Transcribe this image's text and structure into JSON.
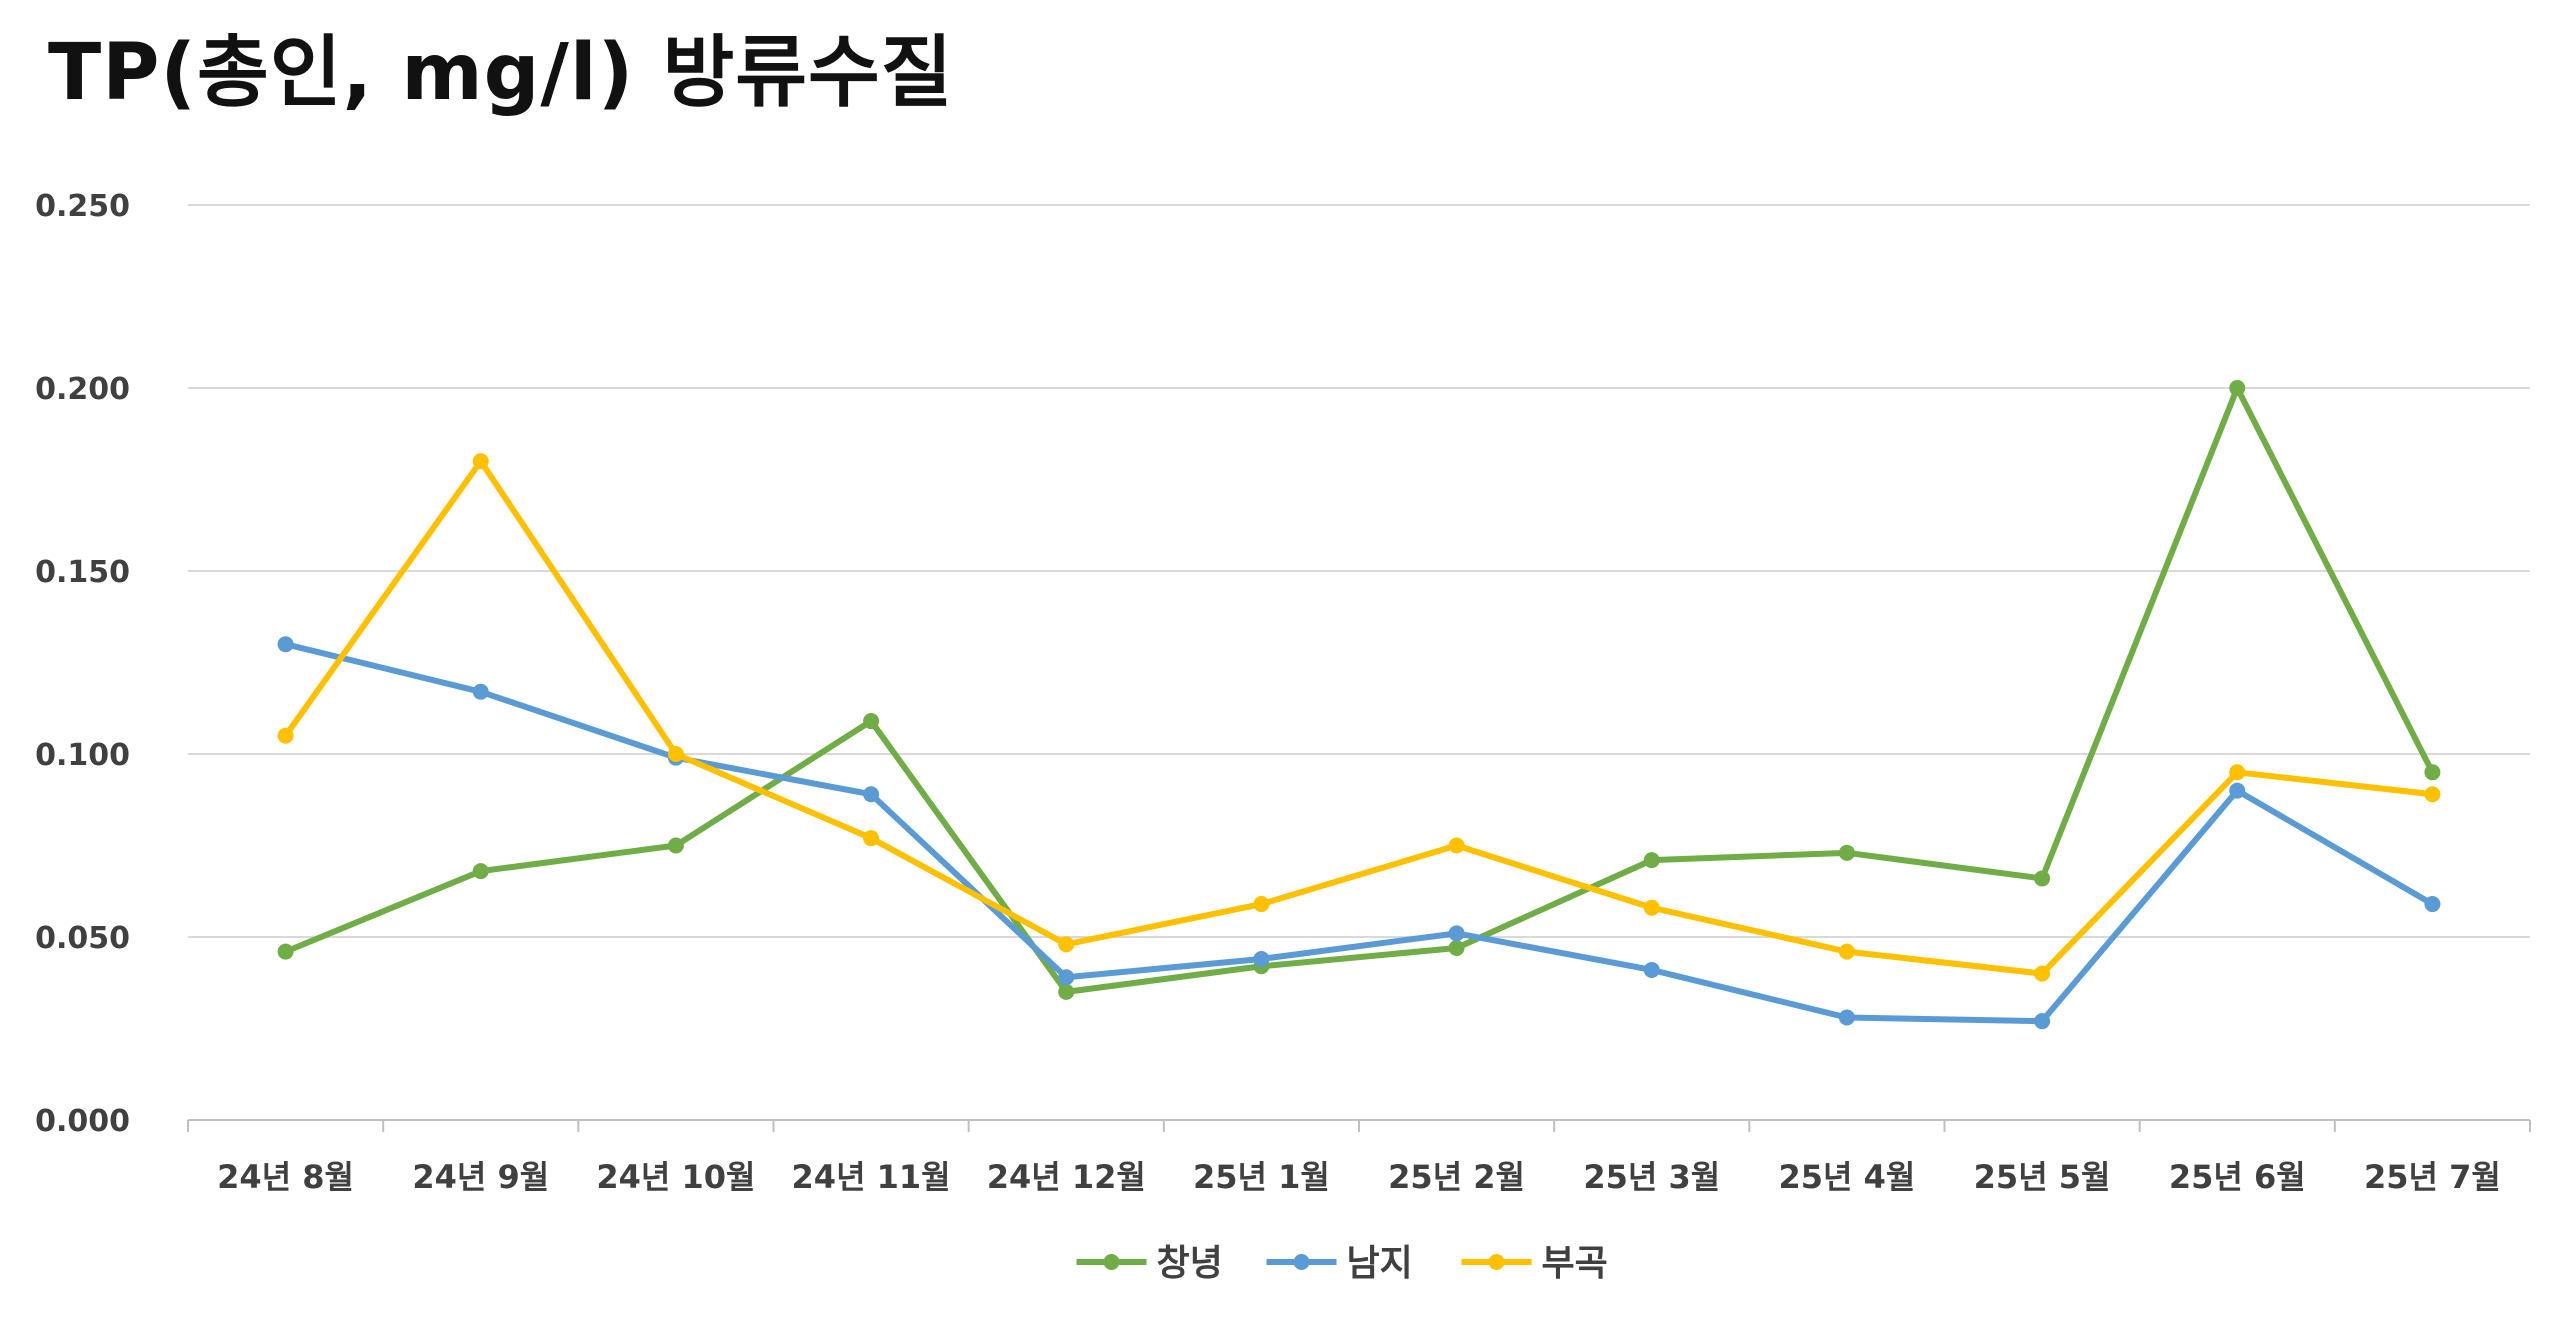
{
  "chart_data": {
    "type": "line",
    "title": "TP(총인, mg/l) 방류수질",
    "xlabel": "",
    "ylabel": "",
    "categories": [
      "24년 8월",
      "24년 9월",
      "24년 10월",
      "24년 11월",
      "24년 12월",
      "25년 1월",
      "25년 2월",
      "25년 3월",
      "25년 4월",
      "25년 5월",
      "25년 6월",
      "25년 7월"
    ],
    "ylim": [
      0,
      0.25
    ],
    "yticks": [
      "0.000",
      "0.050",
      "0.100",
      "0.150",
      "0.200",
      "0.250"
    ],
    "grid": true,
    "legend_position": "bottom",
    "series": [
      {
        "name": "창녕",
        "color": "#70AD47",
        "values": [
          0.046,
          0.068,
          0.075,
          0.109,
          0.035,
          0.042,
          0.047,
          0.071,
          0.073,
          0.066,
          0.2,
          0.095
        ]
      },
      {
        "name": "남지",
        "color": "#5B9BD5",
        "values": [
          0.13,
          0.117,
          0.099,
          0.089,
          0.039,
          0.044,
          0.051,
          0.041,
          0.028,
          0.027,
          0.09,
          0.059
        ]
      },
      {
        "name": "부곡",
        "color": "#FFC000",
        "values": [
          0.105,
          0.18,
          0.1,
          0.077,
          0.048,
          0.059,
          0.075,
          0.058,
          0.046,
          0.04,
          0.095,
          0.089
        ]
      }
    ]
  }
}
